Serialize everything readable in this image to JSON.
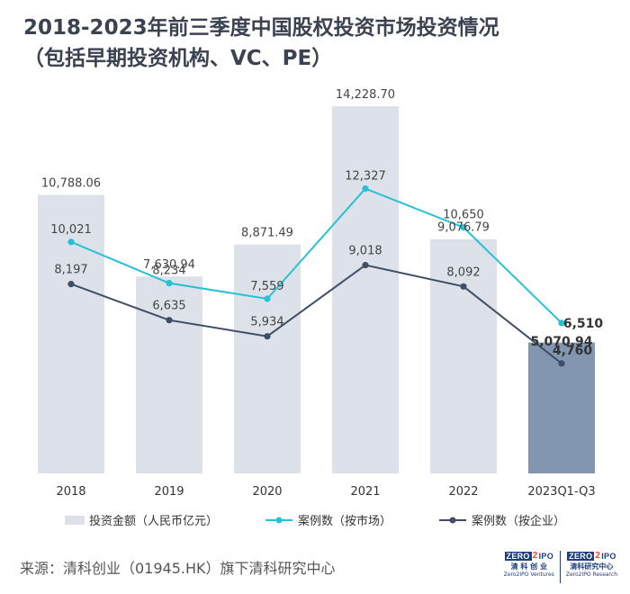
{
  "title_line1": "2018-2023年前三季度中国股权投资市场投资情况",
  "title_line2": "（包括早期投资机构、VC、PE）",
  "chart_data": {
    "type": "bar",
    "categories": [
      "2018",
      "2019",
      "2020",
      "2021",
      "2022",
      "2023Q1-Q3"
    ],
    "series": [
      {
        "name": "投资金额（人民币亿元）",
        "type": "bar",
        "values": [
          10788.06,
          7630.94,
          8871.49,
          14228.7,
          9076.79,
          5070.94
        ],
        "labels": [
          "10,788.06",
          "7,630.94",
          "8,871.49",
          "14,228.70",
          "9,076.79",
          "5,070.94"
        ],
        "color": "#dde1e9",
        "highlight_color": "#8296b0"
      },
      {
        "name": "案例数（按市场）",
        "type": "line",
        "values": [
          10021,
          8234,
          7559,
          12327,
          10650,
          6510
        ],
        "labels": [
          "10,021",
          "8,234",
          "7,559",
          "12,327",
          "10,650",
          "6,510"
        ],
        "color": "#27c1d4"
      },
      {
        "name": "案例数（按企业）",
        "type": "line",
        "values": [
          8197,
          6635,
          5934,
          9018,
          8092,
          4760
        ],
        "labels": [
          "8,197",
          "6,635",
          "5,934",
          "9,018",
          "8,092",
          "4,760"
        ],
        "color": "#3f4e66"
      }
    ],
    "bar_axis_range": [
      0,
      14228.7
    ],
    "line_axis_range": [
      0,
      18000
    ],
    "grid": false,
    "legend_position": "bottom"
  },
  "footer": {
    "source": "来源：清科创业（01945.HK）旗下清科研究中心"
  },
  "logos": [
    {
      "brand": "ZERO",
      "mark": "2",
      "suffix": "IPO",
      "cn": "清 科 创 业",
      "en": "Zero2IPO Ventures"
    },
    {
      "brand": "ZERO",
      "mark": "2",
      "suffix": "IPO",
      "cn": "清科研究中心",
      "en": "Zero2IPO Research"
    }
  ]
}
